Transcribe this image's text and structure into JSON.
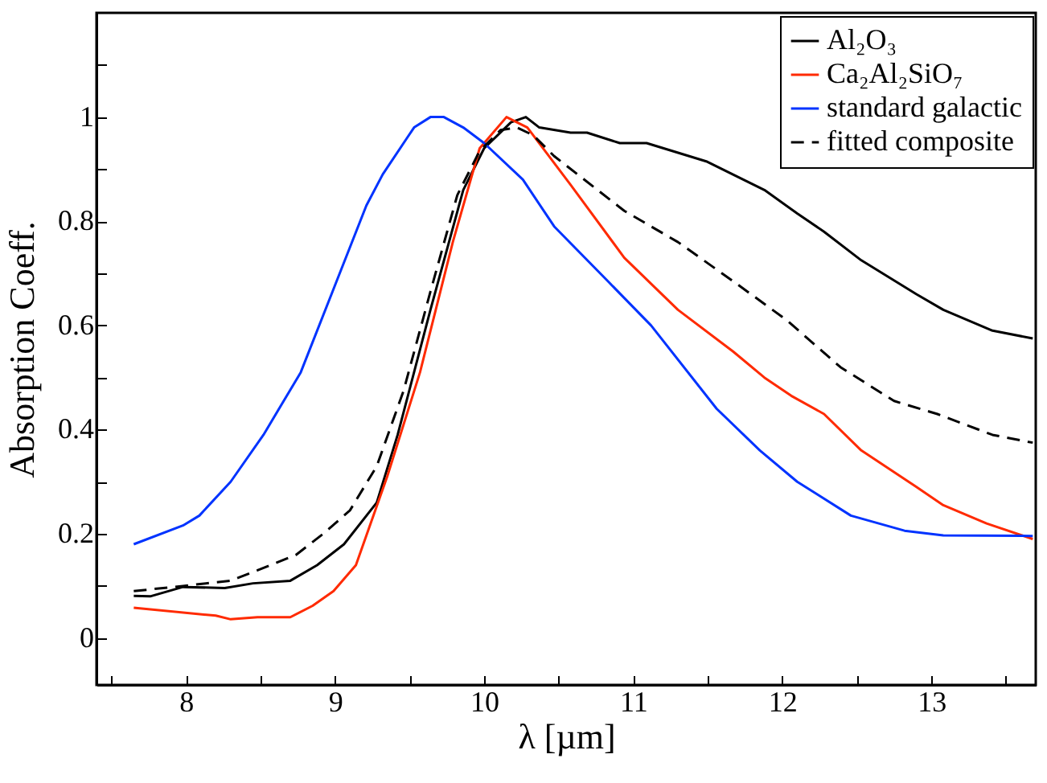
{
  "chart_data": {
    "type": "line",
    "xlabel": "λ [µm]",
    "ylabel": "Absorption Coeff.",
    "xlim": [
      7.4,
      13.7
    ],
    "ylim": [
      -0.09,
      1.2
    ],
    "xticks": [
      {
        "value": 7.5,
        "label": null
      },
      8,
      {
        "value": 8.5,
        "label": null
      },
      9,
      {
        "value": 9.5,
        "label": null
      },
      10,
      {
        "value": 10.5,
        "label": null
      },
      11,
      {
        "value": 11.5,
        "label": null
      },
      12,
      {
        "value": 12.5,
        "label": null
      },
      13,
      {
        "value": 13.5,
        "label": null
      }
    ],
    "yticks": [
      0,
      {
        "value": 0.1,
        "label": null
      },
      0.2,
      {
        "value": 0.3,
        "label": null
      },
      0.4,
      {
        "value": 0.5,
        "label": null
      },
      0.6,
      {
        "value": 0.7,
        "label": null
      },
      0.8,
      {
        "value": 0.9,
        "label": null
      },
      1,
      {
        "value": 1.1,
        "label": null
      }
    ],
    "grid": false,
    "legend": "top right",
    "series": [
      {
        "name": "Al₂O₃",
        "color": "#000000",
        "line_style": "solid",
        "x": [
          7.65,
          7.76,
          7.98,
          8.26,
          8.45,
          8.7,
          8.88,
          9.06,
          9.28,
          9.42,
          9.64,
          9.86,
          10.0,
          10.18,
          10.28,
          10.37,
          10.58,
          10.69,
          10.91,
          11.09,
          11.49,
          11.88,
          12.1,
          12.28,
          12.53,
          12.9,
          13.08,
          13.41,
          13.68
        ],
        "values": [
          0.081,
          0.08,
          0.098,
          0.096,
          0.105,
          0.11,
          0.14,
          0.18,
          0.26,
          0.39,
          0.63,
          0.86,
          0.94,
          0.99,
          1.0,
          0.98,
          0.97,
          0.97,
          0.95,
          0.95,
          0.915,
          0.86,
          0.815,
          0.78,
          0.725,
          0.66,
          0.63,
          0.59,
          0.575
        ]
      },
      {
        "name": "Ca₂Al₂SiO₇",
        "color": "#ff2a00",
        "line_style": "solid",
        "x": [
          7.65,
          8.2,
          8.3,
          8.48,
          8.7,
          8.85,
          8.99,
          9.14,
          9.35,
          9.57,
          9.79,
          9.97,
          10.15,
          10.29,
          10.58,
          10.94,
          11.3,
          11.67,
          11.88,
          12.06,
          12.28,
          12.53,
          12.9,
          13.08,
          13.37,
          13.68
        ],
        "values": [
          0.058,
          0.043,
          0.036,
          0.04,
          0.04,
          0.062,
          0.09,
          0.14,
          0.31,
          0.51,
          0.76,
          0.94,
          1.0,
          0.98,
          0.87,
          0.73,
          0.63,
          0.55,
          0.5,
          0.465,
          0.43,
          0.36,
          0.29,
          0.255,
          0.22,
          0.19
        ]
      },
      {
        "name": "standard galactic",
        "color": "#0033ff",
        "line_style": "solid",
        "x": [
          7.65,
          7.98,
          8.09,
          8.3,
          8.52,
          8.77,
          8.99,
          9.21,
          9.32,
          9.53,
          9.64,
          9.73,
          9.86,
          10.0,
          10.26,
          10.47,
          10.83,
          11.12,
          11.56,
          11.85,
          12.1,
          12.46,
          12.82,
          13.08,
          13.68
        ],
        "values": [
          0.18,
          0.216,
          0.235,
          0.3,
          0.39,
          0.51,
          0.67,
          0.83,
          0.89,
          0.98,
          1.0,
          1.0,
          0.98,
          0.95,
          0.88,
          0.79,
          0.685,
          0.6,
          0.44,
          0.36,
          0.3,
          0.235,
          0.206,
          0.197,
          0.196
        ]
      },
      {
        "name": "fitted composite",
        "color": "#000000",
        "line_style": "dashed",
        "x": [
          7.65,
          7.98,
          8.3,
          8.48,
          8.74,
          8.92,
          9.1,
          9.28,
          9.46,
          9.64,
          9.82,
          9.97,
          10.11,
          10.22,
          10.33,
          10.47,
          10.94,
          11.3,
          11.67,
          12.03,
          12.39,
          12.75,
          13.04,
          13.41,
          13.68
        ],
        "values": [
          0.09,
          0.1,
          0.11,
          0.13,
          0.16,
          0.2,
          0.245,
          0.33,
          0.475,
          0.665,
          0.85,
          0.935,
          0.975,
          0.98,
          0.965,
          0.925,
          0.82,
          0.76,
          0.685,
          0.61,
          0.52,
          0.455,
          0.43,
          0.39,
          0.375
        ]
      }
    ]
  }
}
